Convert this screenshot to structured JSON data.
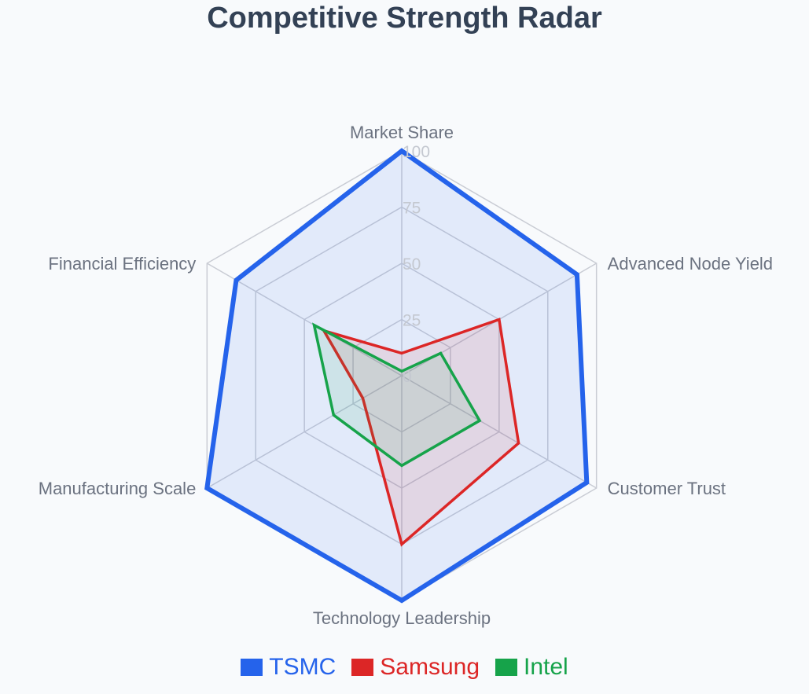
{
  "chart_data": {
    "type": "radar",
    "title": "Competitive Strength Radar",
    "axes": [
      "Market Share",
      "Advanced Node Yield",
      "Customer Trust",
      "Technology Leadership",
      "Manufacturing Scale",
      "Financial Efficiency"
    ],
    "rlim": [
      0,
      100
    ],
    "ticks": [
      0,
      25,
      50,
      75,
      100
    ],
    "grid": true,
    "legend_position": "bottom",
    "series": [
      {
        "name": "TSMC",
        "color": "#2563eb",
        "values": [
          100,
          90,
          95,
          100,
          100,
          85
        ]
      },
      {
        "name": "Samsung",
        "color": "#dc2626",
        "values": [
          10,
          50,
          60,
          75,
          20,
          40
        ]
      },
      {
        "name": "Intel",
        "color": "#16a34a",
        "values": [
          2,
          20,
          40,
          40,
          35,
          45
        ]
      }
    ]
  }
}
